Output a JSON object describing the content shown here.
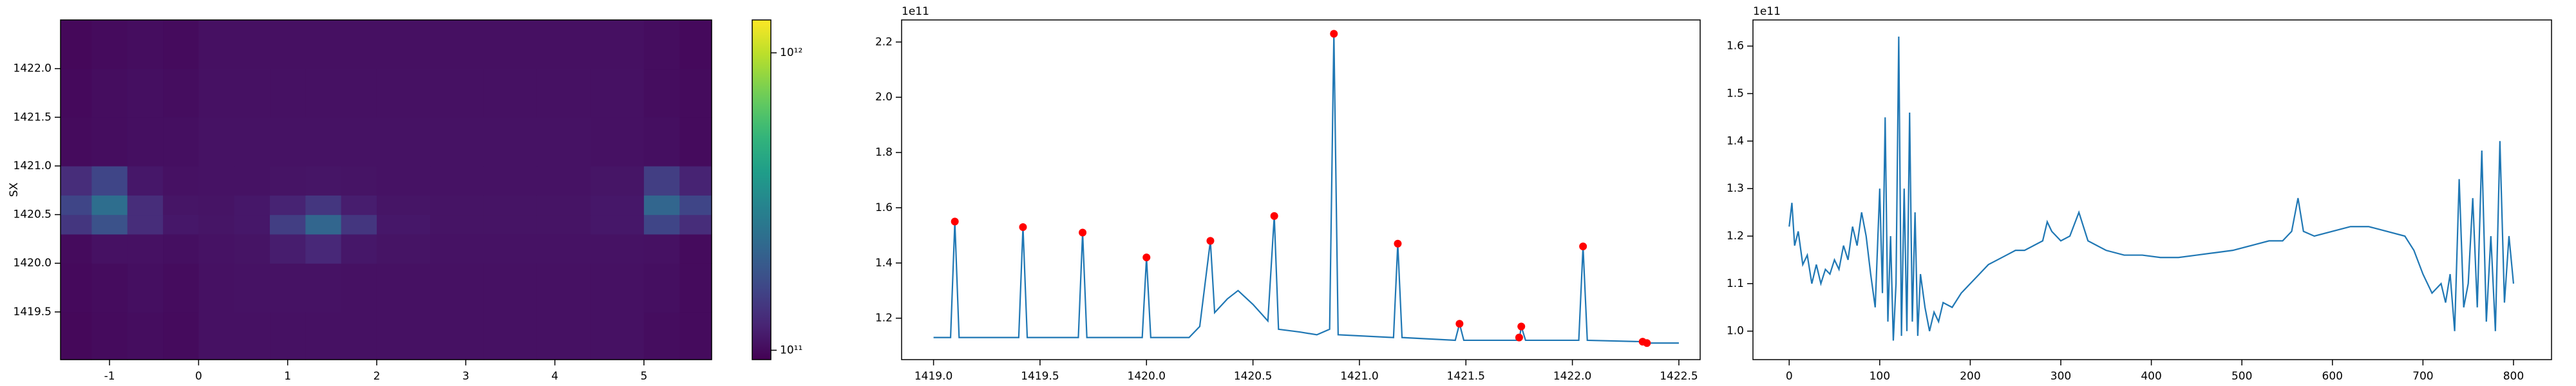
{
  "chart_data": [
    {
      "type": "heatmap",
      "y_label": "SX",
      "colormap": "viridis",
      "color_scale": "log",
      "x_edges": [
        -1.55,
        -1.2,
        -0.8,
        -0.4,
        0,
        0.4,
        0.8,
        1.2,
        1.6,
        2.0,
        2.6,
        3.2,
        3.8,
        4.4,
        5.0,
        5.4,
        5.76
      ],
      "y_edges": [
        1419.01,
        1419.5,
        1420.0,
        1420.3,
        1420.5,
        1420.7,
        1421.0,
        1421.5,
        1422.0,
        1422.5
      ],
      "values": [
        [
          98000000000.0,
          100000000000.0,
          102000000000.0,
          100000000000.0,
          105000000000.0,
          105000000000.0,
          105000000000.0,
          105000000000.0,
          105000000000.0,
          105000000000.0,
          105000000000.0,
          105000000000.0,
          105000000000.0,
          105000000000.0,
          102000000000.0,
          100000000000.0
        ],
        [
          99000000000.0,
          101000000000.0,
          103000000000.0,
          101000000000.0,
          105000000000.0,
          106000000000.0,
          106000000000.0,
          106000000000.0,
          105000000000.0,
          105000000000.0,
          105000000000.0,
          105000000000.0,
          105000000000.0,
          105000000000.0,
          103000000000.0,
          100000000000.0
        ],
        [
          100000000000.0,
          105000000000.0,
          105000000000.0,
          103000000000.0,
          106000000000.0,
          107000000000.0,
          115000000000.0,
          125000000000.0,
          110000000000.0,
          107000000000.0,
          106000000000.0,
          106000000000.0,
          106000000000.0,
          106000000000.0,
          105000000000.0,
          100000000000.0
        ],
        [
          140000000000.0,
          180000000000.0,
          130000000000.0,
          110000000000.0,
          108000000000.0,
          110000000000.0,
          150000000000.0,
          220000000000.0,
          140000000000.0,
          110000000000.0,
          107000000000.0,
          107000000000.0,
          107000000000.0,
          110000000000.0,
          160000000000.0,
          130000000000.0
        ],
        [
          160000000000.0,
          240000000000.0,
          130000000000.0,
          108000000000.0,
          107000000000.0,
          110000000000.0,
          120000000000.0,
          140000000000.0,
          115000000000.0,
          108000000000.0,
          107000000000.0,
          107000000000.0,
          107000000000.0,
          110000000000.0,
          220000000000.0,
          160000000000.0
        ],
        [
          130000000000.0,
          160000000000.0,
          110000000000.0,
          105000000000.0,
          106000000000.0,
          106000000000.0,
          107000000000.0,
          108000000000.0,
          107000000000.0,
          106000000000.0,
          106000000000.0,
          106000000000.0,
          106000000000.0,
          108000000000.0,
          150000000000.0,
          120000000000.0
        ],
        [
          100000000000.0,
          102000000000.0,
          103000000000.0,
          103000000000.0,
          106000000000.0,
          106000000000.0,
          106000000000.0,
          106000000000.0,
          106000000000.0,
          106000000000.0,
          106000000000.0,
          106000000000.0,
          106000000000.0,
          105000000000.0,
          103000000000.0,
          100000000000.0
        ],
        [
          99000000000.0,
          102000000000.0,
          103000000000.0,
          102000000000.0,
          105000000000.0,
          105000000000.0,
          105000000000.0,
          105000000000.0,
          105000000000.0,
          105000000000.0,
          105000000000.0,
          105000000000.0,
          105000000000.0,
          105000000000.0,
          102000000000.0,
          100000000000.0
        ],
        [
          98000000000.0,
          100000000000.0,
          102000000000.0,
          100000000000.0,
          104000000000.0,
          104000000000.0,
          104000000000.0,
          104000000000.0,
          104000000000.0,
          104000000000.0,
          104000000000.0,
          104000000000.0,
          104000000000.0,
          104000000000.0,
          102000000000.0,
          99000000000.0
        ]
      ],
      "clim": [
        93000000000.0,
        1290000000000.0
      ],
      "cticks": [
        {
          "value": 100000000000.0,
          "label": "10¹¹"
        },
        {
          "value": 1000000000000.0,
          "label": "10¹²"
        }
      ],
      "xlim": [
        -1.55,
        5.76
      ],
      "ylim": [
        1419.01,
        1422.5
      ],
      "xticks": [
        -1,
        0,
        1,
        2,
        3,
        4,
        5
      ],
      "yticks": [
        1419.5,
        {
          "value": 1420,
          "label": "1420.0"
        },
        1420.5,
        {
          "value": 1421,
          "label": "1421.0"
        },
        1421.5,
        {
          "value": 1422,
          "label": "1422.0"
        }
      ]
    },
    {
      "type": "line",
      "offset_text": "1e11",
      "series": [
        {
          "type": "line",
          "color": "#1f77b4",
          "x": [
            1419.0,
            1419.08,
            1419.1,
            1419.12,
            1419.4,
            1419.42,
            1419.44,
            1419.68,
            1419.7,
            1419.72,
            1419.98,
            1420.0,
            1420.02,
            1420.2,
            1420.25,
            1420.3,
            1420.32,
            1420.38,
            1420.43,
            1420.5,
            1420.57,
            1420.6,
            1420.62,
            1420.72,
            1420.8,
            1420.86,
            1420.88,
            1420.9,
            1421.16,
            1421.18,
            1421.2,
            1421.45,
            1421.47,
            1421.49,
            1421.75,
            1421.76,
            1421.78,
            1422.03,
            1422.05,
            1422.07,
            1422.33,
            1422.35,
            1422.5
          ],
          "values": [
            1.13,
            1.13,
            1.55,
            1.13,
            1.13,
            1.53,
            1.13,
            1.13,
            1.51,
            1.13,
            1.13,
            1.42,
            1.13,
            1.13,
            1.17,
            1.48,
            1.22,
            1.27,
            1.3,
            1.25,
            1.19,
            1.57,
            1.16,
            1.15,
            1.14,
            1.16,
            2.23,
            1.14,
            1.13,
            1.47,
            1.13,
            1.12,
            1.18,
            1.12,
            1.12,
            1.17,
            1.12,
            1.12,
            1.46,
            1.12,
            1.115,
            1.11,
            1.11
          ]
        },
        {
          "type": "scatter",
          "color": "#ff0000",
          "x": [
            1419.1,
            1419.42,
            1419.7,
            1420.0,
            1420.3,
            1420.6,
            1420.88,
            1421.18,
            1421.47,
            1421.75,
            1421.76,
            1422.05,
            1422.33,
            1422.35
          ],
          "values": [
            1.55,
            1.53,
            1.51,
            1.42,
            1.48,
            1.57,
            2.23,
            1.47,
            1.18,
            1.13,
            1.17,
            1.46,
            1.115,
            1.11
          ]
        }
      ],
      "xlim": [
        1418.85,
        1422.6
      ],
      "ylim": [
        1.05,
        2.28
      ],
      "xticks": [
        {
          "value": 1419,
          "label": "1419.0"
        },
        1419.5,
        {
          "value": 1420,
          "label": "1420.0"
        },
        1420.5,
        {
          "value": 1421,
          "label": "1421.0"
        },
        1421.5,
        {
          "value": 1422,
          "label": "1422.0"
        },
        1422.5
      ],
      "yticks": [
        1.2,
        1.4,
        1.6,
        1.8,
        {
          "value": 2,
          "label": "2.0"
        },
        2.2
      ]
    },
    {
      "type": "line",
      "offset_text": "1e11",
      "series": [
        {
          "type": "line",
          "color": "#1f77b4",
          "x": [
            0,
            3,
            6,
            10,
            15,
            20,
            25,
            30,
            35,
            40,
            45,
            50,
            55,
            60,
            65,
            70,
            75,
            80,
            85,
            90,
            95,
            100,
            103,
            106,
            109,
            112,
            115,
            118,
            121,
            124,
            127,
            130,
            133,
            136,
            139,
            142,
            145,
            150,
            155,
            160,
            165,
            170,
            180,
            190,
            200,
            210,
            220,
            230,
            240,
            250,
            260,
            270,
            280,
            285,
            290,
            300,
            310,
            320,
            325,
            330,
            340,
            350,
            370,
            390,
            410,
            430,
            450,
            470,
            490,
            510,
            530,
            545,
            555,
            562,
            568,
            580,
            600,
            620,
            640,
            660,
            680,
            690,
            700,
            710,
            720,
            725,
            730,
            735,
            740,
            745,
            750,
            755,
            760,
            765,
            770,
            775,
            780,
            785,
            790,
            795,
            800
          ],
          "values": [
            1.22,
            1.27,
            1.18,
            1.21,
            1.14,
            1.16,
            1.1,
            1.14,
            1.1,
            1.13,
            1.12,
            1.15,
            1.13,
            1.18,
            1.15,
            1.22,
            1.18,
            1.25,
            1.2,
            1.12,
            1.05,
            1.3,
            1.08,
            1.45,
            1.02,
            1.2,
            0.98,
            1.1,
            1.62,
            0.99,
            1.3,
            1.0,
            1.46,
            1.02,
            1.25,
            0.99,
            1.12,
            1.05,
            1.0,
            1.04,
            1.02,
            1.06,
            1.05,
            1.08,
            1.1,
            1.12,
            1.14,
            1.15,
            1.16,
            1.17,
            1.17,
            1.18,
            1.19,
            1.23,
            1.21,
            1.19,
            1.2,
            1.25,
            1.22,
            1.19,
            1.18,
            1.17,
            1.16,
            1.16,
            1.155,
            1.155,
            1.16,
            1.165,
            1.17,
            1.18,
            1.19,
            1.19,
            1.21,
            1.28,
            1.21,
            1.2,
            1.21,
            1.22,
            1.22,
            1.21,
            1.2,
            1.17,
            1.12,
            1.08,
            1.1,
            1.06,
            1.12,
            1.0,
            1.32,
            1.05,
            1.1,
            1.28,
            1.05,
            1.38,
            1.02,
            1.2,
            1.0,
            1.4,
            1.06,
            1.2,
            1.1
          ]
        }
      ],
      "xlim": [
        -40,
        842
      ],
      "ylim": [
        0.94,
        1.655
      ],
      "xticks": [
        0,
        100,
        200,
        300,
        400,
        500,
        600,
        700,
        800
      ],
      "yticks": [
        {
          "value": 1,
          "label": "1.0"
        },
        1.1,
        1.2,
        1.3,
        1.4,
        1.5,
        1.6
      ]
    }
  ]
}
